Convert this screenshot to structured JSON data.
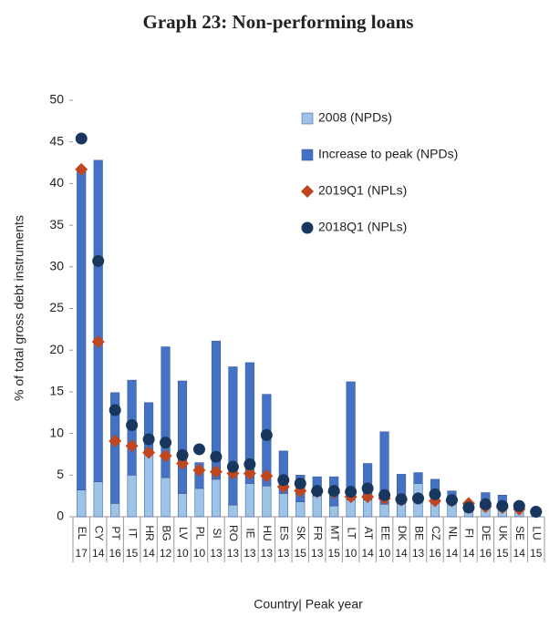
{
  "chart_data": {
    "type": "bar",
    "title": "Graph 23: Non-performing loans",
    "y_label": "% of total gross debt instruments",
    "x_label": "Country| Peak year",
    "categories": [
      "EL",
      "CY",
      "PT",
      "IT",
      "HR",
      "BG",
      "LV",
      "PL",
      "SI",
      "RO",
      "IE",
      "HU",
      "ES",
      "SK",
      "FR",
      "MT",
      "LT",
      "AT",
      "EE",
      "DK",
      "BE",
      "CZ",
      "NL",
      "FI",
      "DE",
      "UK",
      "SE",
      "LU"
    ],
    "peak_year": [
      "17",
      "14",
      "16",
      "15",
      "14",
      "12",
      "10",
      "10",
      "13",
      "13",
      "13",
      "13",
      "13",
      "15",
      "13",
      "15",
      "10",
      "14",
      "10",
      "14",
      "13",
      "16",
      "14",
      "14",
      "16",
      "15",
      "14",
      "15"
    ],
    "ylim": [
      0,
      50
    ],
    "yticks": [
      0,
      5,
      10,
      15,
      20,
      25,
      30,
      35,
      40,
      45,
      50
    ],
    "series": [
      {
        "name": "2008 (NPDs)",
        "type": "bar",
        "color": "#9dc3e6",
        "values": [
          3.2,
          4.2,
          1.6,
          5.0,
          7.5,
          4.7,
          2.8,
          3.4,
          4.5,
          1.4,
          4.0,
          3.7,
          2.8,
          1.8,
          2.5,
          1.3,
          2.0,
          2.0,
          1.5,
          2.0,
          4.0,
          2.0,
          1.5,
          1.0,
          1.9,
          1.5,
          0.8,
          0.5
        ]
      },
      {
        "name": "Increase to peak (NPDs)",
        "type": "bar",
        "color": "#4472c4",
        "values": [
          38.5,
          38.6,
          13.3,
          11.4,
          6.2,
          15.7,
          13.5,
          3.1,
          16.6,
          16.6,
          14.5,
          11.0,
          5.1,
          3.2,
          2.3,
          3.5,
          14.2,
          4.4,
          8.7,
          3.1,
          1.3,
          2.5,
          1.6,
          0.5,
          1.0,
          1.1,
          0.7,
          0.4
        ]
      },
      {
        "name": "2019Q1 (NPLs)",
        "type": "scatter",
        "marker": "diamond",
        "color": "#c0461e",
        "values": [
          41.7,
          21.0,
          9.1,
          8.5,
          7.7,
          7.3,
          6.4,
          5.6,
          5.4,
          5.2,
          5.2,
          4.9,
          3.6,
          3.1,
          3.0,
          2.9,
          2.4,
          2.4,
          2.2,
          2.0,
          2.2,
          1.9,
          1.9,
          1.6,
          1.2,
          1.1,
          0.9,
          0.6
        ]
      },
      {
        "name": "2018Q1 (NPLs)",
        "type": "scatter",
        "marker": "circle",
        "color": "#17375e",
        "values": [
          45.4,
          30.7,
          12.8,
          11.0,
          9.3,
          8.9,
          7.4,
          8.1,
          7.2,
          6.0,
          6.3,
          9.8,
          4.4,
          4.0,
          3.1,
          3.1,
          3.0,
          3.4,
          2.6,
          2.1,
          2.2,
          2.7,
          2.0,
          1.1,
          1.5,
          1.3,
          1.3,
          0.6
        ]
      }
    ]
  }
}
